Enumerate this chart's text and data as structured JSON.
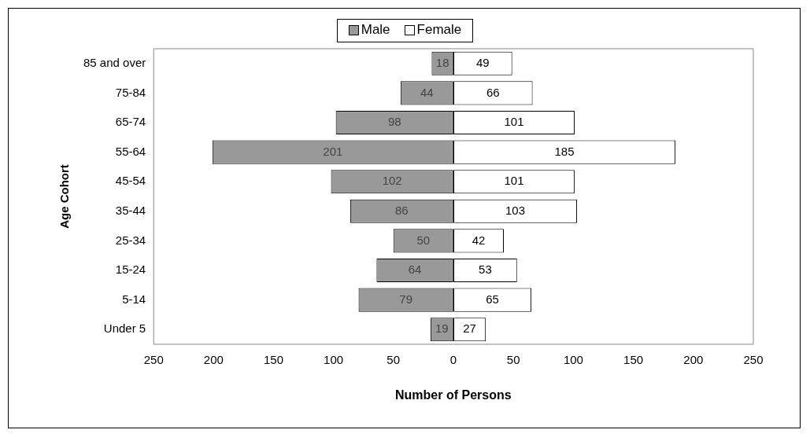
{
  "chart_data": [
    {
      "type": "bar",
      "orientation": "horizontal",
      "legend": "top",
      "data_labels": true,
      "xlabel": "Number of Persons",
      "ylabel": "Age Cohort",
      "categories": [
        "85 and over",
        "75-84",
        "65-74",
        "55-64",
        "45-54",
        "35-44",
        "25-34",
        "15-24",
        "5-14",
        "Under 5"
      ],
      "series": [
        {
          "name": "Male",
          "color": "#999999",
          "values": [
            18,
            44,
            98,
            201,
            102,
            86,
            50,
            64,
            79,
            19
          ]
        }
      ],
      "xlim": [
        250,
        0
      ],
      "xticks": [
        250,
        200,
        150,
        100,
        50,
        0
      ]
    },
    {
      "type": "bar",
      "orientation": "horizontal",
      "legend": "top",
      "data_labels": true,
      "tick_labels": "x",
      "series": [
        {
          "name": "Female",
          "color": "#ffffff",
          "values": [
            49,
            66,
            101,
            185,
            101,
            103,
            42,
            53,
            65,
            27
          ]
        }
      ],
      "xlim": [
        0,
        250
      ],
      "xticks": [
        50,
        100,
        150,
        200,
        250
      ]
    }
  ]
}
